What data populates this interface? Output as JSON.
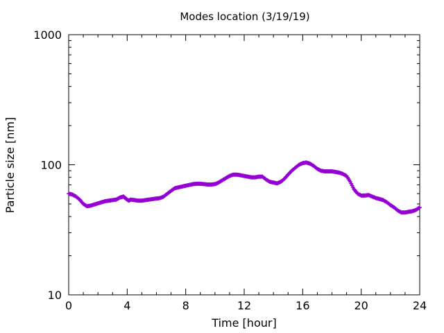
{
  "chart_data": {
    "type": "line",
    "title": "Modes location (3/19/19)",
    "xlabel": "Time [hour]",
    "ylabel": "Particle size [nm]",
    "xlim": [
      0,
      24
    ],
    "ylim": [
      10,
      1000
    ],
    "yscale": "log",
    "x_ticks": [
      0,
      4,
      8,
      12,
      16,
      20,
      24
    ],
    "x_tick_labels": [
      "0",
      "4",
      "8",
      "12",
      "16",
      "20",
      "24"
    ],
    "y_ticks": [
      10,
      100,
      1000
    ],
    "y_tick_labels": [
      "10",
      "100",
      "1000"
    ],
    "grid": false,
    "legend": "none",
    "series": [
      {
        "color": "#9400d3",
        "marker": "plus",
        "x": [
          0,
          0.25,
          0.5,
          0.75,
          1.0,
          1.25,
          1.5,
          1.75,
          2.0,
          2.25,
          2.5,
          2.75,
          3.0,
          3.25,
          3.5,
          3.75,
          3.9,
          4.1,
          4.25,
          4.5,
          4.75,
          5.0,
          5.25,
          5.5,
          5.75,
          6.0,
          6.25,
          6.5,
          6.75,
          7.0,
          7.25,
          7.5,
          7.75,
          8.0,
          8.25,
          8.5,
          8.75,
          9.0,
          9.25,
          9.5,
          9.75,
          10.0,
          10.25,
          10.5,
          10.75,
          11.0,
          11.25,
          11.5,
          11.75,
          12.0,
          12.25,
          12.5,
          12.75,
          13.0,
          13.25,
          13.5,
          13.75,
          14.0,
          14.25,
          14.5,
          14.75,
          15.0,
          15.25,
          15.5,
          15.75,
          16.0,
          16.25,
          16.5,
          16.75,
          17.0,
          17.25,
          17.5,
          17.75,
          18.0,
          18.25,
          18.5,
          18.75,
          19.0,
          19.25,
          19.5,
          19.75,
          20.0,
          20.25,
          20.5,
          20.75,
          21.0,
          21.25,
          21.5,
          21.75,
          22.0,
          22.25,
          22.5,
          22.75,
          23.0,
          23.25,
          23.5,
          23.75,
          24.0
        ],
        "y": [
          60,
          59,
          57,
          54,
          50,
          48,
          48.5,
          49.5,
          50.5,
          51.5,
          52.5,
          53,
          53.5,
          54,
          56,
          57,
          55,
          53,
          54,
          53.5,
          53,
          53,
          53.5,
          54,
          54.5,
          55,
          55.5,
          57,
          60,
          63,
          66,
          67,
          68,
          69,
          70,
          71,
          71.5,
          71.5,
          71,
          70.5,
          70.5,
          71,
          73,
          76,
          79,
          82,
          84,
          84,
          83,
          82,
          81,
          80,
          80,
          81,
          81,
          77,
          74,
          73,
          72,
          74,
          78,
          84,
          90,
          95,
          100,
          103,
          104,
          102,
          98,
          93,
          90,
          89,
          89,
          89,
          88,
          87,
          85,
          82,
          74,
          65,
          60,
          58,
          58,
          58.5,
          57,
          55.5,
          54.5,
          53.5,
          51.5,
          49,
          47,
          44.5,
          43,
          43,
          43.5,
          44,
          45,
          47
        ]
      }
    ]
  }
}
